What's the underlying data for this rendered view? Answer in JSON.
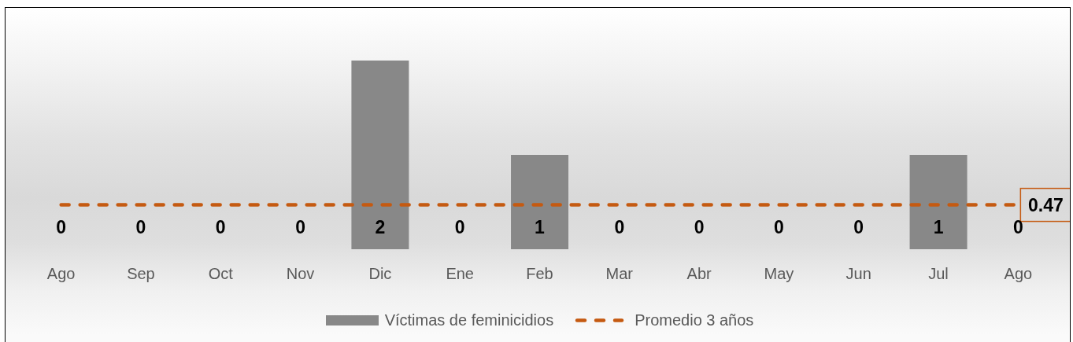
{
  "chart_data": {
    "type": "bar",
    "categories": [
      "Ago",
      "Sep",
      "Oct",
      "Nov",
      "Dic",
      "Ene",
      "Feb",
      "Mar",
      "Abr",
      "May",
      "Jun",
      "Jul",
      "Ago"
    ],
    "series": [
      {
        "name": "Víctimas de feminicidios",
        "color": "#888888",
        "values": [
          0,
          0,
          0,
          0,
          2,
          0,
          1,
          0,
          0,
          0,
          0,
          1,
          0
        ],
        "value_labels": [
          "0",
          "0",
          "0",
          "0",
          "2",
          "0",
          "1",
          "0",
          "0",
          "0",
          "0",
          "1",
          "0"
        ]
      },
      {
        "name": "Promedio 3 años",
        "type": "line",
        "color": "#c55a11",
        "values": [
          0.47,
          0.47,
          0.47,
          0.47,
          0.47,
          0.47,
          0.47,
          0.47,
          0.47,
          0.47,
          0.47,
          0.47,
          0.47
        ],
        "value_labels": [
          null,
          null,
          null,
          null,
          null,
          null,
          null,
          null,
          null,
          null,
          null,
          null,
          "0.47"
        ],
        "line_style": "dashed",
        "marker": "none"
      }
    ],
    "legend": "bottom",
    "grid": false,
    "tick_labels": "x"
  }
}
